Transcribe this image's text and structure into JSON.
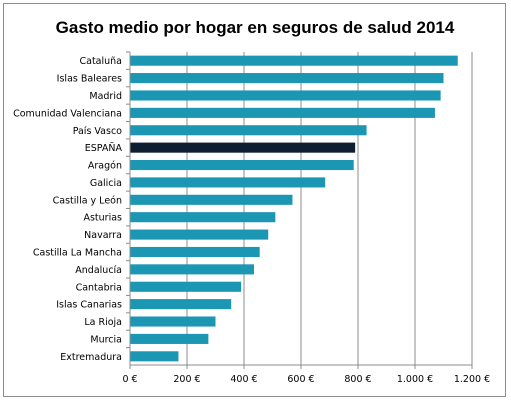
{
  "chart_data": {
    "type": "bar",
    "orientation": "horizontal",
    "title": "Gasto medio por hogar en seguros de salud 2014",
    "xlabel": "",
    "ylabel": "",
    "xlim": [
      0,
      1200
    ],
    "x_ticks": [
      0,
      200,
      400,
      600,
      800,
      1000,
      1200
    ],
    "x_tick_labels": [
      "0 €",
      "200 €",
      "400 €",
      "600 €",
      "800 €",
      "1.000 €",
      "1.200 €"
    ],
    "grid": "vertical",
    "legend": "none",
    "default_color": "#1b97b3",
    "highlight_color": "#0f1f33",
    "highlight_category": "ESPAÑA",
    "categories": [
      "Cataluña",
      "Islas Baleares",
      "Madrid",
      "Comunidad Valenciana",
      "País Vasco",
      "ESPAÑA",
      "Aragón",
      "Galicia",
      "Castilla y León",
      "Asturias",
      "Navarra",
      "Castilla La Mancha",
      "Andalucía",
      "Cantabria",
      "Islas Canarias",
      "La Rioja",
      "Murcia",
      "Extremadura"
    ],
    "values": [
      1150,
      1100,
      1090,
      1070,
      830,
      790,
      785,
      685,
      570,
      510,
      485,
      455,
      435,
      390,
      355,
      300,
      275,
      170
    ]
  }
}
